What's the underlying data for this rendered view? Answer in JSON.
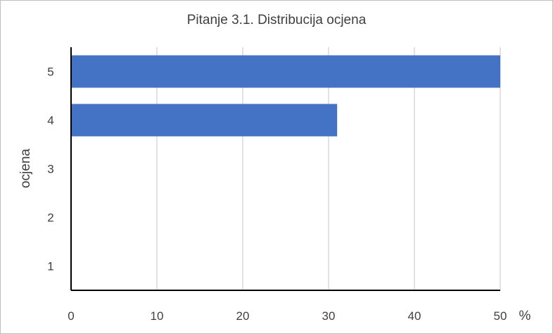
{
  "chart_data": {
    "type": "bar",
    "orientation": "horizontal",
    "title": "Pitanje 3.1. Distribucija ocjena",
    "categories": [
      "1",
      "2",
      "3",
      "4",
      "5"
    ],
    "values": [
      0,
      0,
      0,
      31,
      50
    ],
    "xlabel": "%",
    "ylabel": "ocjena",
    "xlim": [
      0,
      50
    ],
    "xticks": [
      "0",
      "10",
      "20",
      "30",
      "40",
      "50"
    ],
    "grid": true,
    "legend": "none",
    "bar_color": "#4472c4"
  }
}
